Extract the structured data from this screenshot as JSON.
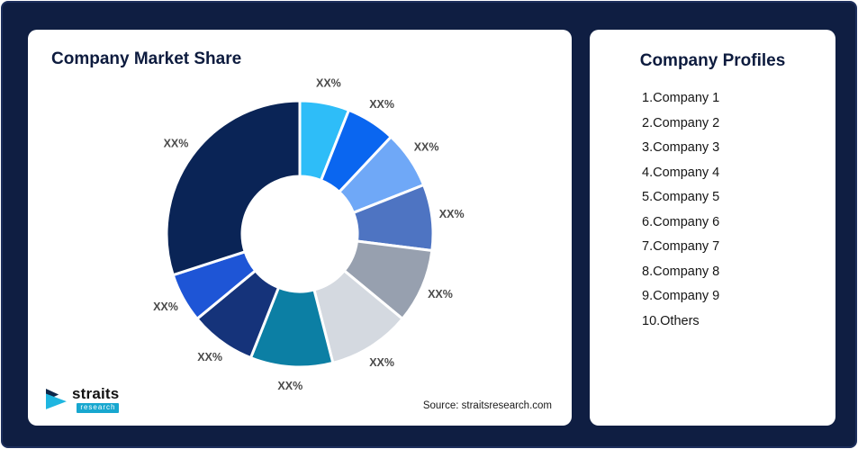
{
  "page": {
    "background": "#0F1E42"
  },
  "left_card": {
    "title": "Company Market Share",
    "source": "Source: straitsresearch.com"
  },
  "logo": {
    "name": "straits",
    "sub": "research"
  },
  "right_card": {
    "title": "Company Profiles",
    "items": [
      "1.Company 1",
      "2.Company 2",
      "3.Company 3",
      "4.Company 4",
      "5.Company 5",
      "6.Company 6",
      "7.Company 7",
      "8.Company 8",
      "9.Company 9",
      "10.Others"
    ]
  },
  "chart_data": {
    "type": "pie",
    "variant": "donut",
    "title": "Company Market Share",
    "start_angle_deg": -90,
    "direction": "clockwise",
    "inner_radius_ratio": 0.43,
    "legend_position": "none",
    "value_note": "labels shown as XX% placeholders; values are visual angle estimates",
    "segments": [
      {
        "name": "Company 1",
        "label": "XX%",
        "value": 6,
        "color": "#2EBDF8"
      },
      {
        "name": "Company 2",
        "label": "XX%",
        "value": 6,
        "color": "#0A66F0"
      },
      {
        "name": "Company 3",
        "label": "XX%",
        "value": 7,
        "color": "#6FA8F7"
      },
      {
        "name": "Company 4",
        "label": "XX%",
        "value": 8,
        "color": "#4E74C2"
      },
      {
        "name": "Company 5",
        "label": "XX%",
        "value": 9,
        "color": "#97A0AF"
      },
      {
        "name": "Company 6",
        "label": "XX%",
        "value": 10,
        "color": "#D4D9E0"
      },
      {
        "name": "Company 7",
        "label": "XX%",
        "value": 10,
        "color": "#0C7FA4"
      },
      {
        "name": "Company 8",
        "label": "XX%",
        "value": 8,
        "color": "#15337A"
      },
      {
        "name": "Company 9",
        "label": "XX%",
        "value": 6,
        "color": "#1E55D6"
      },
      {
        "name": "Others",
        "label": "XX%",
        "value": 30,
        "color": "#0A2456"
      }
    ]
  }
}
